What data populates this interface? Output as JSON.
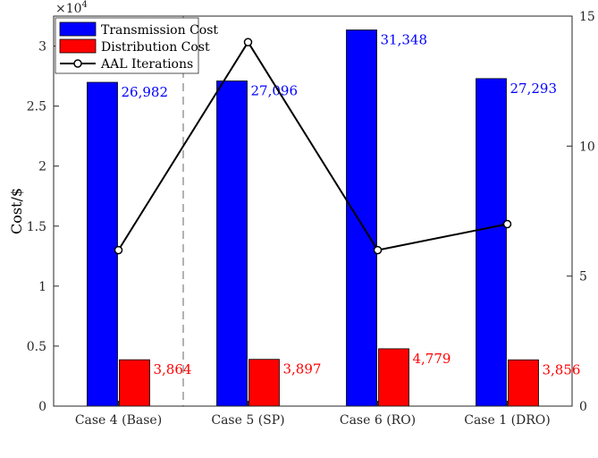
{
  "chart_data": {
    "type": "bar",
    "categories": [
      "Case 4 (Base)",
      "Case 5 (SP)",
      "Case 6 (RO)",
      "Case 1 (DRO)"
    ],
    "series": [
      {
        "name": "Transmission Cost",
        "values": [
          26982,
          27096,
          31348,
          27293
        ],
        "color": "#0000ff",
        "axis": "left"
      },
      {
        "name": "Distribution Cost",
        "values": [
          3864,
          3897,
          4779,
          3856
        ],
        "color": "#ff0000",
        "axis": "left"
      },
      {
        "name": "AAL Iterations",
        "values": [
          6,
          14,
          6,
          7
        ],
        "color": "#000000",
        "axis": "right",
        "style": "line-circle-markers"
      }
    ],
    "data_labels": {
      "transmission": [
        "26,982",
        "27,096",
        "31,348",
        "27,293"
      ],
      "distribution": [
        "3,864",
        "3,897",
        "4,779",
        "3,856"
      ]
    },
    "ylabel": "Cost/$",
    "y_exponent_label": "×10",
    "y_exponent_power": "4",
    "ylim": [
      0,
      32500
    ],
    "yticks": [
      0,
      5000,
      10000,
      15000,
      20000,
      25000,
      30000
    ],
    "ytick_labels": [
      "0",
      "0.5",
      "1",
      "1.5",
      "2",
      "2.5",
      "3"
    ],
    "y2lim": [
      0,
      15
    ],
    "y2ticks": [
      0,
      5,
      10,
      15
    ],
    "y2tick_labels": [
      "0",
      "5",
      "10",
      "15"
    ],
    "legend_position": "top-left",
    "separator_after_category": 0,
    "grid": false
  }
}
